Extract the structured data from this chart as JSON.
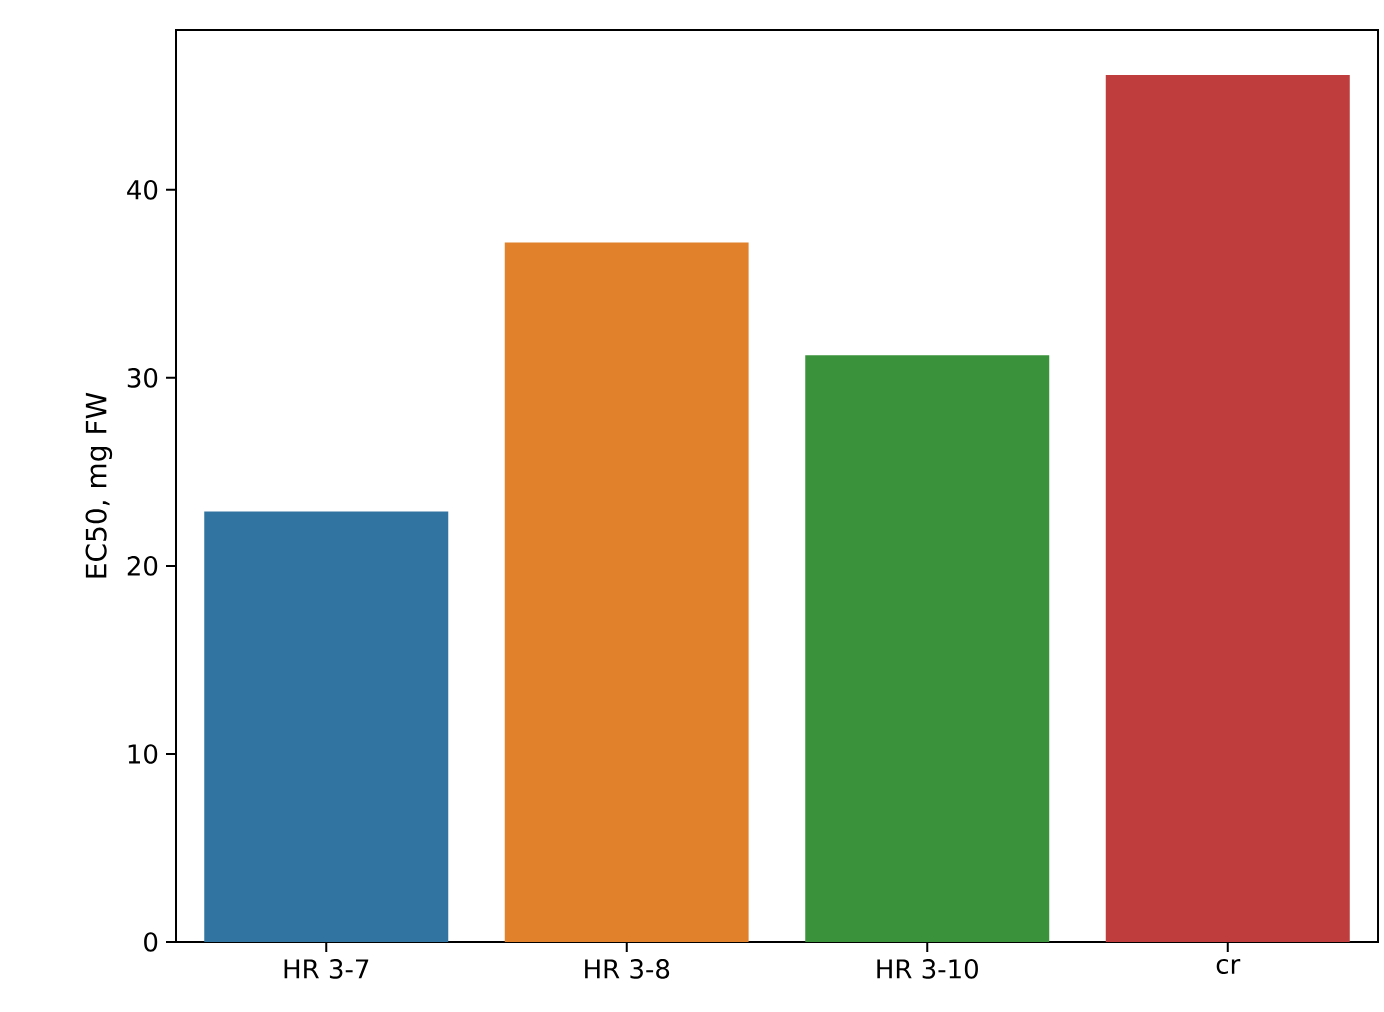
{
  "chart_data": {
    "type": "bar",
    "ylabel": "EC50, mg FW",
    "categories": [
      "HR 3-7",
      "HR 3-8",
      "HR 3-10",
      "cr"
    ],
    "values": [
      22.9,
      37.2,
      31.2,
      46.1
    ],
    "colors": [
      "#3274a1",
      "#e1812c",
      "#3a923a",
      "#c03d3e"
    ],
    "ylim": [
      0,
      48.5
    ],
    "yticks": [
      0,
      10,
      20,
      30,
      40
    ],
    "grid": false
  }
}
